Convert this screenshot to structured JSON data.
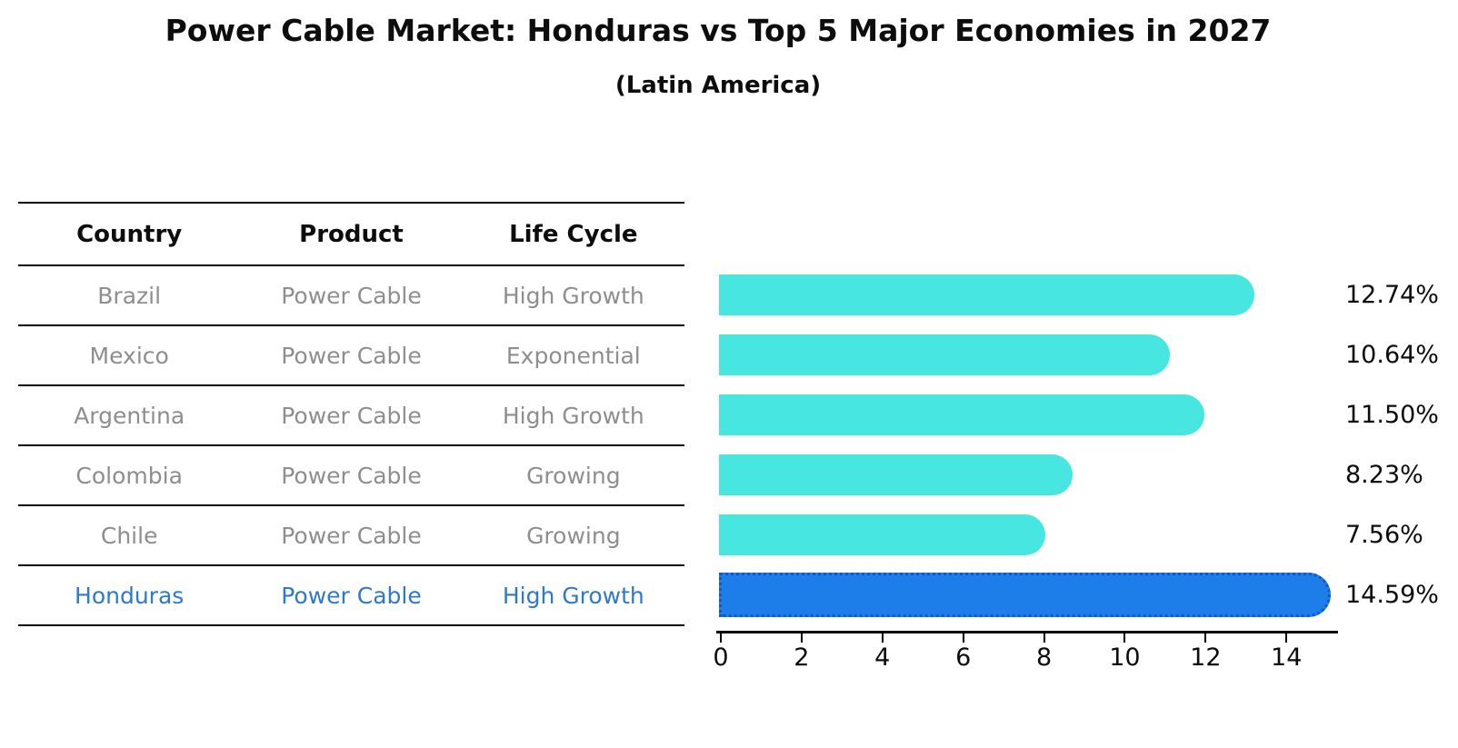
{
  "title": "Power Cable Market: Honduras vs Top 5 Major Economies in 2027",
  "subtitle": "(Latin America)",
  "table": {
    "headers": [
      "Country",
      "Product",
      "Life Cycle"
    ],
    "rows": [
      {
        "country": "Brazil",
        "product": "Power Cable",
        "life_cycle": "High Growth",
        "highlight": false
      },
      {
        "country": "Mexico",
        "product": "Power Cable",
        "life_cycle": "Exponential",
        "highlight": false
      },
      {
        "country": "Argentina",
        "product": "Power Cable",
        "life_cycle": "High Growth",
        "highlight": false
      },
      {
        "country": "Colombia",
        "product": "Power Cable",
        "life_cycle": "Growing",
        "highlight": false
      },
      {
        "country": "Chile",
        "product": "Power Cable",
        "life_cycle": "Growing",
        "highlight": false
      },
      {
        "country": "Honduras",
        "product": "Power Cable",
        "life_cycle": "High Growth",
        "highlight": true
      }
    ]
  },
  "chart_data": {
    "type": "bar",
    "orientation": "horizontal",
    "categories": [
      "Brazil",
      "Mexico",
      "Argentina",
      "Colombia",
      "Chile",
      "Honduras"
    ],
    "values": [
      12.74,
      10.64,
      11.5,
      8.23,
      7.56,
      14.59
    ],
    "value_labels": [
      "12.74%",
      "10.64%",
      "11.50%",
      "8.23%",
      "7.56%",
      "14.59%"
    ],
    "x_ticks": [
      "0",
      "2",
      "4",
      "6",
      "8",
      "10",
      "12",
      "14"
    ],
    "xlim": [
      0,
      15.3
    ],
    "grid": false,
    "legend": "none",
    "bar_color": "#48e6e0",
    "highlight_color": "#1e7ee9",
    "highlight_edge_color": "#1457c9",
    "highlight_text_color": "#2e79c9",
    "row_text_color": "#8e8e8e",
    "highlight_index": 5
  }
}
